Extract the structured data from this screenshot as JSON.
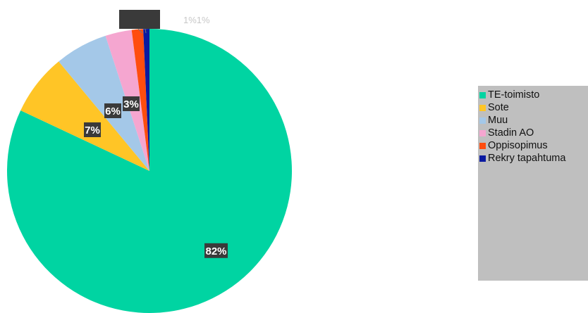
{
  "chart_data": {
    "type": "pie",
    "title": "",
    "slices": [
      {
        "name": "TE-toimisto",
        "value": 82,
        "label": "82%",
        "color": "#00d4a2"
      },
      {
        "name": "Sote",
        "value": 7,
        "label": "7%",
        "color": "#ffc526"
      },
      {
        "name": "Muu",
        "value": 6,
        "label": "6%",
        "color": "#a4c8e8"
      },
      {
        "name": "Stadin AO",
        "value": 3,
        "label": "3%",
        "color": "#f5a6d0"
      },
      {
        "name": "Oppisopimus",
        "value": 1.3,
        "label": "1%",
        "color": "#ff4d0f"
      },
      {
        "name": "Rekry tapahtuma",
        "value": 0.7,
        "label": "1%",
        "color": "#0a1aa0"
      }
    ],
    "outer_label_text": "1%1%",
    "label_box_color": "#3a3a3a",
    "legend": {
      "position": "right",
      "background": "#bfbfbf"
    }
  }
}
